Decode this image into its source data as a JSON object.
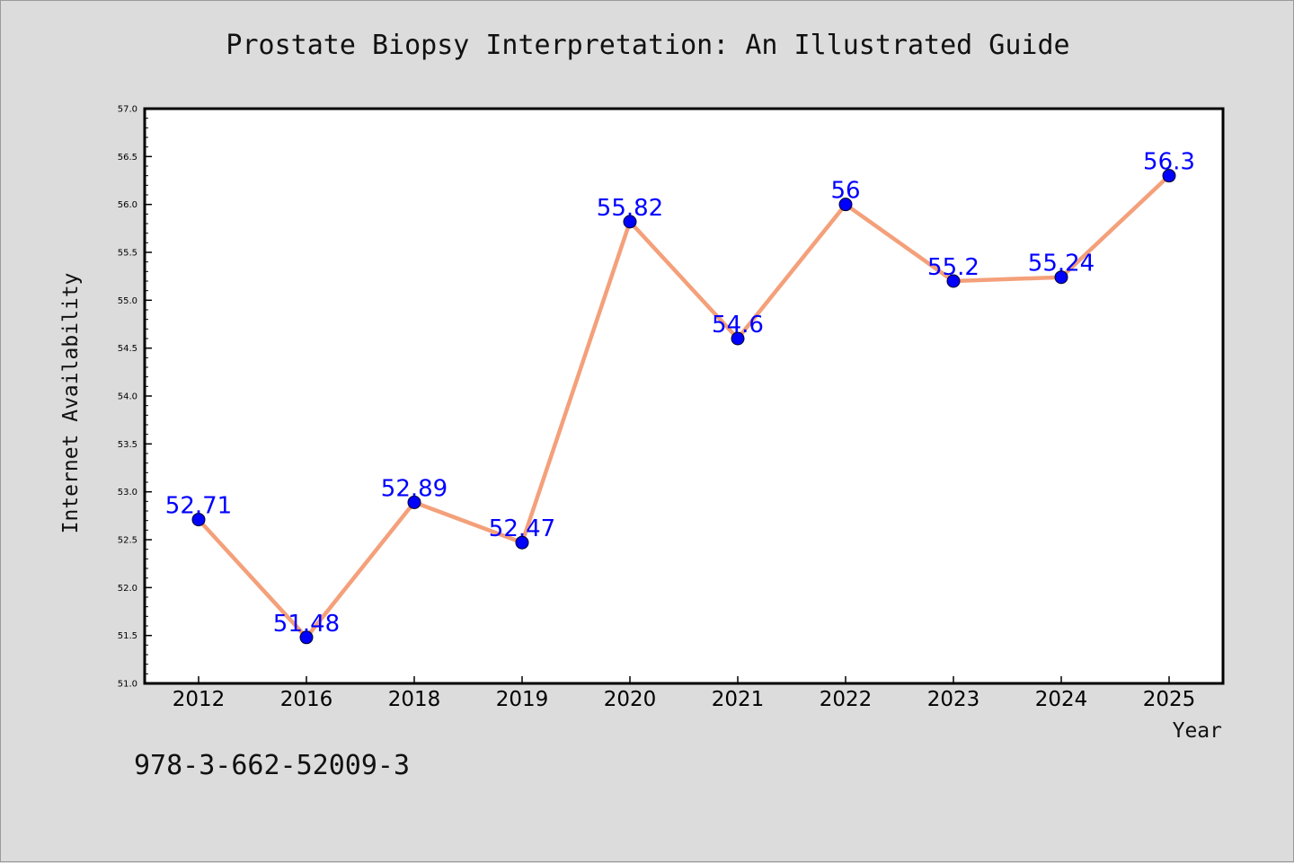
{
  "figure": {
    "title": "Prostate Biopsy Interpretation: An Illustrated Guide",
    "isbn": "978-3-662-52009-3"
  },
  "chart_data": {
    "type": "line",
    "title": "Prostate Biopsy Interpretation: An Illustrated Guide",
    "xlabel": "Year",
    "ylabel": "Internet Availability",
    "categories": [
      "2012",
      "2016",
      "2018",
      "2019",
      "2020",
      "2021",
      "2022",
      "2023",
      "2024",
      "2025"
    ],
    "series": [
      {
        "values": [
          52.71,
          51.48,
          52.89,
          52.47,
          55.82,
          54.6,
          56,
          55.2,
          55.24,
          56.3
        ],
        "labels": [
          "52.71",
          "51.48",
          "52.89",
          "52.47",
          "55.82",
          "54.6",
          "56",
          "55.2",
          "55.24",
          "56.3"
        ],
        "line_color": "#f4a07a",
        "marker_color": "#0000ff"
      }
    ],
    "ylim": [
      51.0,
      57.0
    ],
    "yticks": [
      "51.0",
      "51.5",
      "52.0",
      "52.5",
      "53.0",
      "53.5",
      "54.0",
      "54.5",
      "55.0",
      "55.5",
      "56.0",
      "56.5",
      "57.0"
    ],
    "grid": false,
    "legend": false
  }
}
